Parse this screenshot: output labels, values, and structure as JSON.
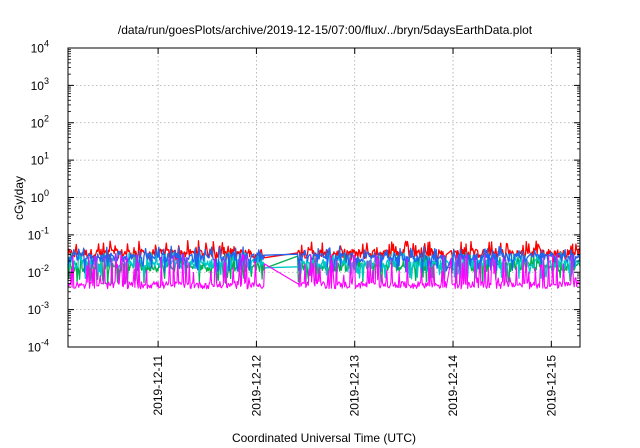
{
  "chart_data": {
    "type": "line",
    "title": "/data/run/goesPlots/archive/2019-12-15/07:00/flux/../bryn/5daysEarthData.plot",
    "xlabel": "Coordinated Universal Time (UTC)",
    "ylabel": "cGy/day",
    "y_scale": "log",
    "ylim": [
      0.0001,
      10000
    ],
    "y_ticks": [
      {
        "value": 0.0001,
        "base": "10",
        "exp": "-4"
      },
      {
        "value": 0.001,
        "base": "10",
        "exp": "-3"
      },
      {
        "value": 0.01,
        "base": "10",
        "exp": "-2"
      },
      {
        "value": 0.1,
        "base": "10",
        "exp": "-1"
      },
      {
        "value": 1,
        "base": "10",
        "exp": "0"
      },
      {
        "value": 10,
        "base": "10",
        "exp": "1"
      },
      {
        "value": 100,
        "base": "10",
        "exp": "2"
      },
      {
        "value": 1000,
        "base": "10",
        "exp": "3"
      },
      {
        "value": 10000,
        "base": "10",
        "exp": "4"
      }
    ],
    "xlim": [
      "2019-12-10T02:00",
      "2019-12-15T07:00"
    ],
    "x_ticks": [
      "2019-12-11",
      "2019-12-12",
      "2019-12-13",
      "2019-12-14",
      "2019-12-15"
    ],
    "grid": true,
    "gaps": [
      {
        "start": "2019-12-12T02:00",
        "end": "2019-12-12T10:00"
      },
      {
        "start": "2019-12-13T22:30",
        "end": "2019-12-13T23:30"
      }
    ],
    "series": [
      {
        "color": "#ff0000",
        "base": 0.032,
        "spike_max": 0.07,
        "dip_min": 0.022
      },
      {
        "color": "#00b050",
        "base": 0.014,
        "spike_max": 0.03,
        "dip_min": 0.006
      },
      {
        "color": "#00c8c8",
        "base": 0.017,
        "spike_max": 0.035,
        "dip_min": 0.008
      },
      {
        "color": "#1e64f0",
        "base": 0.025,
        "spike_max": 0.05,
        "dip_min": 0.012
      },
      {
        "color": "#ff00ff",
        "base": 0.0045,
        "spike_max": 0.03,
        "dip_min": 0.0035
      }
    ]
  }
}
